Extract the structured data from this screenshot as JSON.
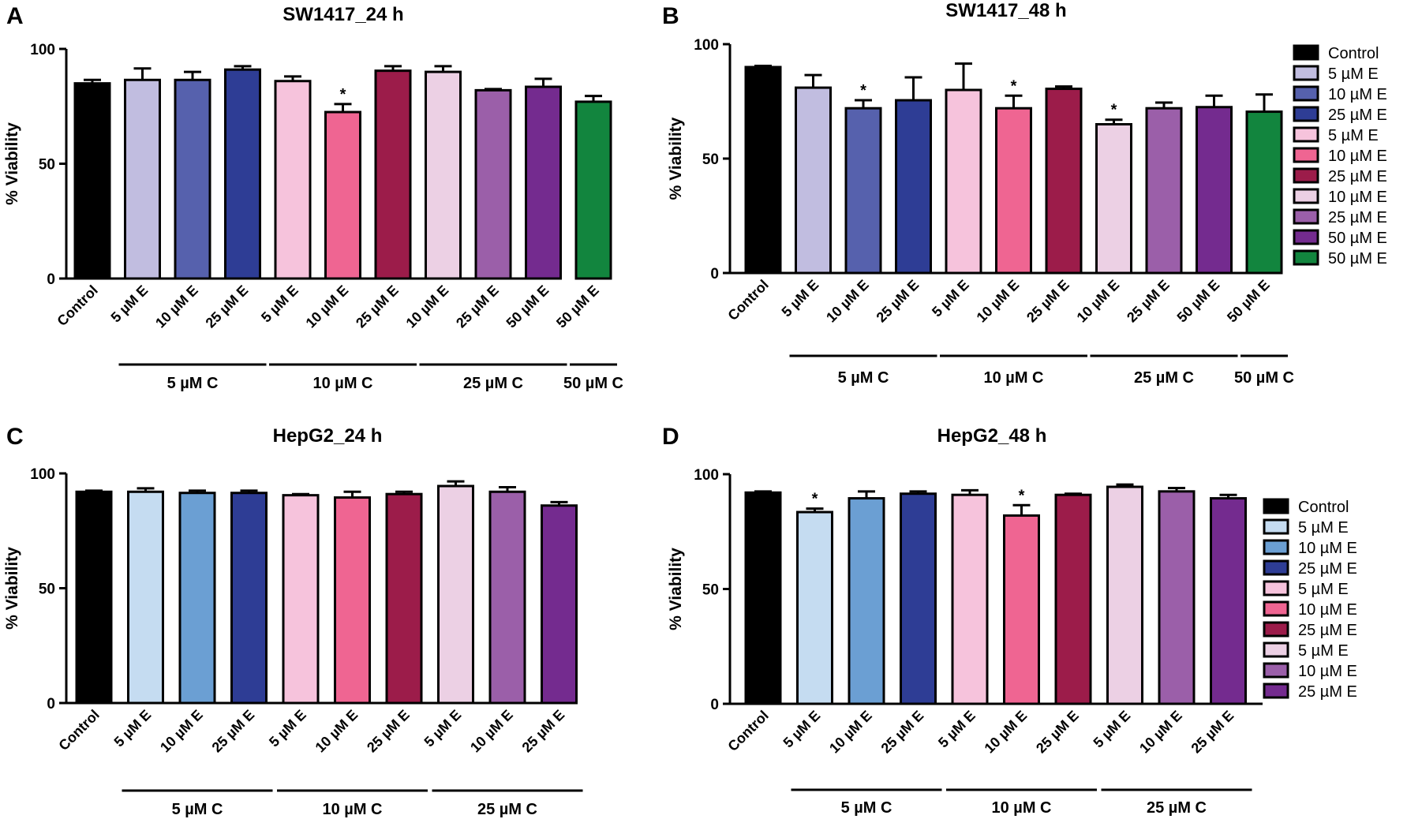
{
  "colors": {
    "black": "#000000",
    "lav": "#c1bde0",
    "blueMid": "#5661ad",
    "navy": "#2e3d95",
    "pink": "#f6c3dc",
    "hotpink": "#ef6592",
    "crimson": "#9c1c4a",
    "lightpink": "#ecd0e4",
    "orchid": "#9b5fa9",
    "purple": "#742b8f",
    "green": "#12853e",
    "paleblue": "#c5dcf1",
    "skyblue": "#6b9fd3"
  },
  "chart_data": [
    {
      "label": "A",
      "type": "bar",
      "title": "SW1417_24 h",
      "ylabel": "% Viability",
      "ylim": [
        0,
        100
      ],
      "yticks": [
        "0",
        "50",
        "100"
      ],
      "categories": [
        "Control",
        "5 µM E",
        "10 µM E",
        "25 µM E",
        "5 µM E",
        "10 µM E",
        "25 µM E",
        "10 µM E",
        "25 µM E",
        "50 µM E",
        "50 µM E"
      ],
      "values": [
        85,
        86.5,
        86.5,
        91,
        86,
        72.5,
        90.5,
        90,
        82,
        83.5,
        77
      ],
      "errors": [
        1.5,
        5,
        3.5,
        1.5,
        2,
        3.5,
        2,
        2.5,
        0.5,
        3.5,
        2.5
      ],
      "significant": [
        false,
        false,
        false,
        false,
        false,
        true,
        false,
        false,
        false,
        false,
        false
      ],
      "colors": [
        "black",
        "lav",
        "blueMid",
        "navy",
        "pink",
        "hotpink",
        "crimson",
        "lightpink",
        "orchid",
        "purple",
        "green"
      ],
      "groups": [
        {
          "label": "5 µM C",
          "from": 1,
          "to": 3
        },
        {
          "label": "10 µM C",
          "from": 4,
          "to": 6
        },
        {
          "label": "25 µM C",
          "from": 7,
          "to": 9
        },
        {
          "label": "50 µM C",
          "from": 10,
          "to": 10
        }
      ],
      "legend": []
    },
    {
      "label": "B",
      "type": "bar",
      "title": "SW1417_48 h",
      "ylabel": "% Viability",
      "ylim": [
        0,
        100
      ],
      "yticks": [
        "0",
        "50",
        "100"
      ],
      "categories": [
        "Control",
        "5 µM E",
        "10 µM E",
        "25 µM E",
        "5 µM E",
        "10 µM E",
        "25 µM E",
        "10 µM E",
        "25 µM E",
        "50 µM E",
        "50 µM E"
      ],
      "values": [
        90,
        81,
        72,
        75.5,
        80,
        72,
        80.5,
        65,
        72,
        72.5,
        70.5
      ],
      "errors": [
        0.5,
        5.5,
        3.5,
        10,
        11.5,
        5.5,
        1,
        2,
        2.5,
        5,
        7.5
      ],
      "significant": [
        false,
        false,
        true,
        false,
        false,
        true,
        false,
        true,
        false,
        false,
        false
      ],
      "colors": [
        "black",
        "lav",
        "blueMid",
        "navy",
        "pink",
        "hotpink",
        "crimson",
        "lightpink",
        "orchid",
        "purple",
        "green"
      ],
      "groups": [
        {
          "label": "5 µM C",
          "from": 1,
          "to": 3
        },
        {
          "label": "10 µM C",
          "from": 4,
          "to": 6
        },
        {
          "label": "25 µM C",
          "from": 7,
          "to": 9
        },
        {
          "label": "50 µM C",
          "from": 10,
          "to": 10
        }
      ],
      "legend": [
        "Control",
        "5 µM E",
        "10 µM E",
        "25 µM E",
        "5 µM E",
        "10 µM E",
        "25 µM E",
        "10 µM E",
        "25 µM E",
        "50 µM E",
        "50 µM E"
      ]
    },
    {
      "label": "C",
      "type": "bar",
      "title": "HepG2_24 h",
      "ylabel": "% Viability",
      "ylim": [
        0,
        100
      ],
      "yticks": [
        "0",
        "50",
        "100"
      ],
      "categories": [
        "Control",
        "5 µM E",
        "10 µM E",
        "25 µM E",
        "5 µM E",
        "10 µM E",
        "25 µM E",
        "5 µM E",
        "10 µM E",
        "25 µM E"
      ],
      "values": [
        92,
        92,
        91.5,
        91.5,
        90.5,
        89.5,
        91,
        94.5,
        92,
        86
      ],
      "errors": [
        0.5,
        1.5,
        1,
        1,
        0.5,
        2.5,
        1,
        2,
        2,
        1.5
      ],
      "significant": [
        false,
        false,
        false,
        false,
        false,
        false,
        false,
        false,
        false,
        false
      ],
      "colors": [
        "black",
        "paleblue",
        "skyblue",
        "navy",
        "pink",
        "hotpink",
        "crimson",
        "lightpink",
        "orchid",
        "purple"
      ],
      "groups": [
        {
          "label": "5 µM C",
          "from": 1,
          "to": 3
        },
        {
          "label": "10 µM C",
          "from": 4,
          "to": 6
        },
        {
          "label": "25 µM C",
          "from": 7,
          "to": 9
        }
      ],
      "legend": []
    },
    {
      "label": "D",
      "type": "bar",
      "title": "HepG2_48 h",
      "ylabel": "% Viability",
      "ylim": [
        0,
        100
      ],
      "yticks": [
        "0",
        "50",
        "100"
      ],
      "categories": [
        "Control",
        "5 µM E",
        "10 µM E",
        "25 µM E",
        "5 µM E",
        "10 µM E",
        "25 µM E",
        "5 µM E",
        "10 µM E",
        "25 µM E"
      ],
      "values": [
        92,
        83.5,
        89.5,
        91.5,
        91,
        82,
        91,
        94.5,
        92.5,
        89.5
      ],
      "errors": [
        0.5,
        1.5,
        3,
        1,
        2,
        4.5,
        0.5,
        1,
        1.5,
        1.5
      ],
      "significant": [
        false,
        true,
        false,
        false,
        false,
        true,
        false,
        false,
        false,
        false
      ],
      "colors": [
        "black",
        "paleblue",
        "skyblue",
        "navy",
        "pink",
        "hotpink",
        "crimson",
        "lightpink",
        "orchid",
        "purple"
      ],
      "groups": [
        {
          "label": "5 µM C",
          "from": 1,
          "to": 3
        },
        {
          "label": "10 µM C",
          "from": 4,
          "to": 6
        },
        {
          "label": "25 µM C",
          "from": 7,
          "to": 9
        }
      ],
      "legend": [
        "Control",
        "5 µM E",
        "10 µM E",
        "25 µM E",
        "5 µM E",
        "10 µM E",
        "25 µM E",
        "5 µM E",
        "10 µM E",
        "25 µM E"
      ]
    }
  ]
}
